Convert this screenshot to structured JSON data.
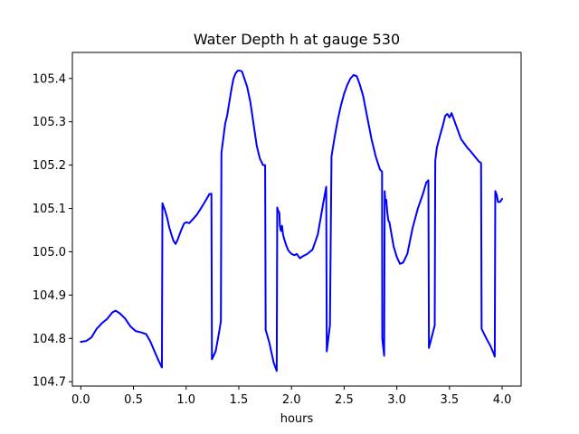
{
  "chart_data": {
    "type": "line",
    "title": "Water Depth h at gauge 530",
    "xlabel": "hours",
    "ylabel": "",
    "xlim": [
      -0.08,
      4.18
    ],
    "ylim": [
      104.69,
      105.46
    ],
    "x_ticks": [
      0.0,
      0.5,
      1.0,
      1.5,
      2.0,
      2.5,
      3.0,
      3.5,
      4.0
    ],
    "x_tick_labels": [
      "0.0",
      "0.5",
      "1.0",
      "1.5",
      "2.0",
      "2.5",
      "3.0",
      "3.5",
      "4.0"
    ],
    "y_ticks": [
      104.7,
      104.8,
      104.9,
      105.0,
      105.1,
      105.2,
      105.3,
      105.4
    ],
    "y_tick_labels": [
      "104.7",
      "104.8",
      "104.9",
      "105.0",
      "105.1",
      "105.2",
      "105.3",
      "105.4"
    ],
    "grid": false,
    "series": [
      {
        "color": "#0000ff",
        "x": [
          0.0,
          0.05,
          0.1,
          0.15,
          0.2,
          0.25,
          0.3,
          0.33,
          0.37,
          0.42,
          0.47,
          0.52,
          0.57,
          0.62,
          0.66,
          0.7,
          0.74,
          0.77,
          0.775,
          0.8,
          0.82,
          0.84,
          0.86,
          0.88,
          0.9,
          0.92,
          0.95,
          0.98,
          1.0,
          1.03,
          1.06,
          1.1,
          1.14,
          1.18,
          1.22,
          1.24,
          1.245,
          1.28,
          1.31,
          1.33,
          1.335,
          1.35,
          1.37,
          1.39,
          1.41,
          1.43,
          1.45,
          1.47,
          1.49,
          1.51,
          1.53,
          1.55,
          1.58,
          1.61,
          1.64,
          1.67,
          1.7,
          1.73,
          1.75,
          1.755,
          1.79,
          1.83,
          1.86,
          1.865,
          1.875,
          1.885,
          1.89,
          1.9,
          1.91,
          1.92,
          1.93,
          1.95,
          1.97,
          2.0,
          2.03,
          2.05,
          2.08,
          2.11,
          2.15,
          2.2,
          2.25,
          2.3,
          2.33,
          2.335,
          2.36,
          2.365,
          2.38,
          2.41,
          2.44,
          2.47,
          2.5,
          2.53,
          2.56,
          2.59,
          2.62,
          2.65,
          2.68,
          2.72,
          2.76,
          2.8,
          2.84,
          2.86,
          2.862,
          2.88,
          2.885,
          2.89,
          2.9,
          2.91,
          2.92,
          2.93,
          2.95,
          2.97,
          3.0,
          3.03,
          3.06,
          3.1,
          3.15,
          3.2,
          3.25,
          3.28,
          3.3,
          3.305,
          3.36,
          3.365,
          3.38,
          3.41,
          3.44,
          3.46,
          3.48,
          3.5,
          3.52,
          3.55,
          3.58,
          3.61,
          3.64,
          3.67,
          3.7,
          3.74,
          3.78,
          3.8,
          3.805,
          3.85,
          3.89,
          3.92,
          3.93,
          3.935,
          3.95,
          3.96,
          3.98,
          4.0
        ],
        "y": [
          104.792,
          104.794,
          104.802,
          104.822,
          104.835,
          104.845,
          104.86,
          104.864,
          104.858,
          104.846,
          104.828,
          104.817,
          104.814,
          104.81,
          104.793,
          104.77,
          104.748,
          104.733,
          105.112,
          105.095,
          105.078,
          105.056,
          105.04,
          105.025,
          105.018,
          105.028,
          105.048,
          105.065,
          105.068,
          105.066,
          105.074,
          105.085,
          105.1,
          105.116,
          105.133,
          105.134,
          104.752,
          104.77,
          104.81,
          104.84,
          105.228,
          105.256,
          105.295,
          105.315,
          105.345,
          105.375,
          105.4,
          105.412,
          105.418,
          105.418,
          105.416,
          105.402,
          105.38,
          105.345,
          105.295,
          105.245,
          105.215,
          105.2,
          105.2,
          104.82,
          104.79,
          104.745,
          104.725,
          105.102,
          105.094,
          105.09,
          105.06,
          105.048,
          105.06,
          105.04,
          105.03,
          105.015,
          105.003,
          104.995,
          104.992,
          104.995,
          104.985,
          104.99,
          104.995,
          105.005,
          105.04,
          105.11,
          105.15,
          104.77,
          104.82,
          104.83,
          105.22,
          105.265,
          105.305,
          105.338,
          105.365,
          105.385,
          105.4,
          105.408,
          105.405,
          105.385,
          105.36,
          105.31,
          105.26,
          105.22,
          105.19,
          105.185,
          104.8,
          104.76,
          105.14,
          105.118,
          105.12,
          105.09,
          105.072,
          105.068,
          105.04,
          105.012,
          104.988,
          104.972,
          104.975,
          104.995,
          105.055,
          105.1,
          105.135,
          105.16,
          105.165,
          104.778,
          104.83,
          105.21,
          105.24,
          105.268,
          105.294,
          105.314,
          105.318,
          105.31,
          105.32,
          105.3,
          105.28,
          105.26,
          105.25,
          105.24,
          105.232,
          105.22,
          105.208,
          105.205,
          104.822,
          104.8,
          104.782,
          104.765,
          104.758,
          105.14,
          105.13,
          105.115,
          105.115,
          105.122
        ]
      }
    ]
  }
}
